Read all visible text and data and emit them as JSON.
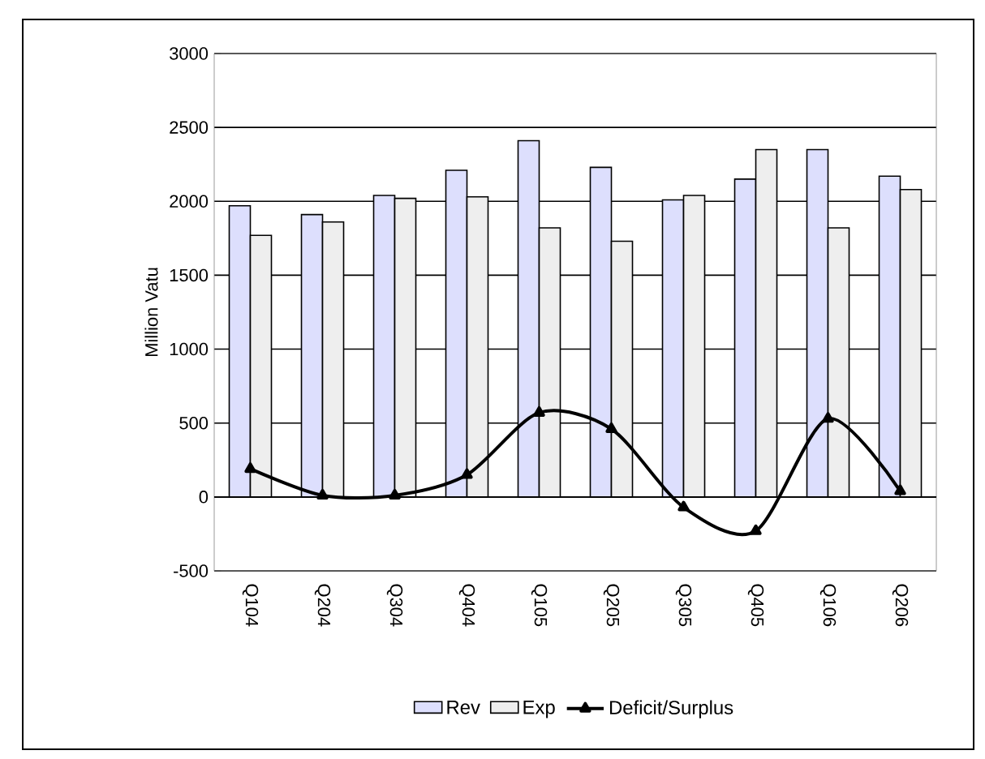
{
  "chart_data": {
    "type": "bar",
    "ylabel": "Million Vatu",
    "categories": [
      "Q104",
      "Q204",
      "Q304",
      "Q404",
      "Q105",
      "Q205",
      "Q305",
      "Q405",
      "Q106",
      "Q206"
    ],
    "series": [
      {
        "name": "Rev",
        "color": "#dddffd",
        "values": [
          1970,
          1910,
          2040,
          2210,
          2410,
          2230,
          2010,
          2150,
          2350,
          2170
        ]
      },
      {
        "name": "Exp",
        "color": "#eeeeee",
        "values": [
          1770,
          1860,
          2020,
          2030,
          1820,
          1730,
          2040,
          2350,
          1820,
          2080
        ]
      },
      {
        "name": "Deficit/Surplus",
        "type": "line",
        "color": "#000000",
        "values": [
          190,
          10,
          10,
          150,
          570,
          460,
          -70,
          -230,
          530,
          40
        ]
      }
    ],
    "ylim": [
      -500,
      3000
    ],
    "yticks": [
      -500,
      0,
      500,
      1000,
      1500,
      2000,
      2500,
      3000
    ],
    "grid": "y",
    "legend": "bottom",
    "marker": "triangle"
  }
}
